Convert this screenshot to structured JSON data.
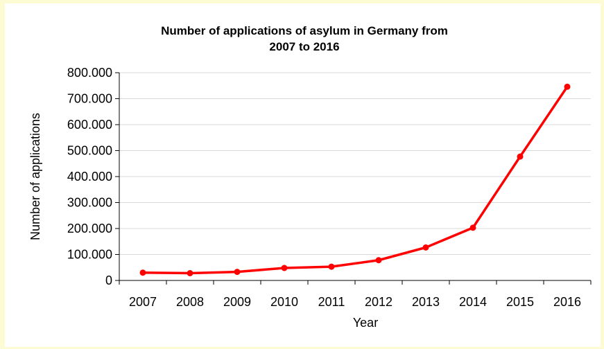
{
  "chart_data": {
    "type": "line",
    "title_line1": "Number of applications of asylum in Germany  from",
    "title_line2": "2007 to 2016",
    "xlabel": "Year",
    "ylabel": "Number  of applications",
    "categories": [
      "2007",
      "2008",
      "2009",
      "2010",
      "2011",
      "2012",
      "2013",
      "2014",
      "2015",
      "2016"
    ],
    "series": [
      {
        "values": [
          30000,
          28000,
          33000,
          48000,
          53000,
          78000,
          127000,
          203000,
          477000,
          746000
        ]
      }
    ],
    "ylim": [
      0,
      800000
    ],
    "yticks": [
      {
        "value": 0,
        "label": "0"
      },
      {
        "value": 100000,
        "label": "100.000"
      },
      {
        "value": 200000,
        "label": "200.000"
      },
      {
        "value": 300000,
        "label": "300.000"
      },
      {
        "value": 400000,
        "label": "400.000"
      },
      {
        "value": 500000,
        "label": "500.000"
      },
      {
        "value": 600000,
        "label": "600.000"
      },
      {
        "value": 700000,
        "label": "700.000"
      },
      {
        "value": 800000,
        "label": "800.000"
      }
    ],
    "grid": true,
    "line_color": "#ff0000",
    "grid_color": "#d9d9d9"
  }
}
